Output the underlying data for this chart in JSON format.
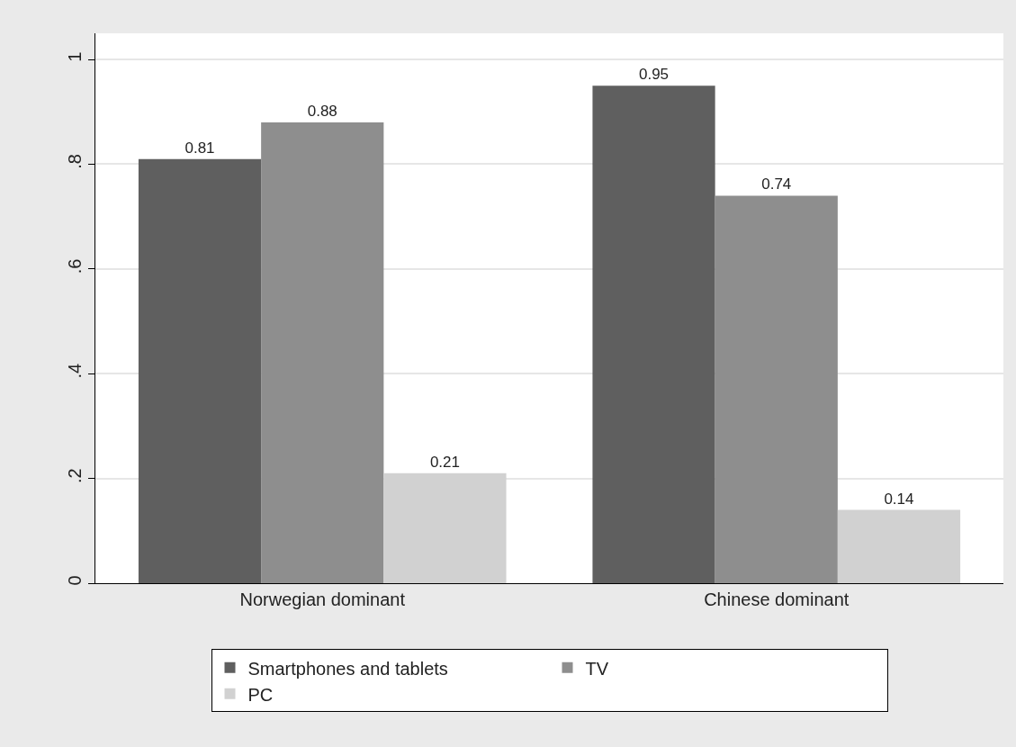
{
  "chart_data": {
    "type": "bar",
    "categories": [
      "Norwegian dominant",
      "Chinese dominant"
    ],
    "series": [
      {
        "name": "Smartphones and tablets",
        "color": "#5f5f5f",
        "values": [
          0.81,
          0.95
        ]
      },
      {
        "name": "TV",
        "color": "#8e8e8e",
        "values": [
          0.88,
          0.74
        ]
      },
      {
        "name": "PC",
        "color": "#d1d1d1",
        "values": [
          0.21,
          0.14
        ]
      }
    ],
    "ylim": [
      0,
      1.05
    ],
    "yticks": [
      {
        "value": 0,
        "label": "0"
      },
      {
        "value": 0.2,
        "label": ".2"
      },
      {
        "value": 0.4,
        "label": ".4"
      },
      {
        "value": 0.6,
        "label": ".6"
      },
      {
        "value": 0.8,
        "label": ".8"
      },
      {
        "value": 1,
        "label": "1"
      }
    ],
    "grid": "y",
    "legend": "bottom",
    "data_labels": true
  }
}
